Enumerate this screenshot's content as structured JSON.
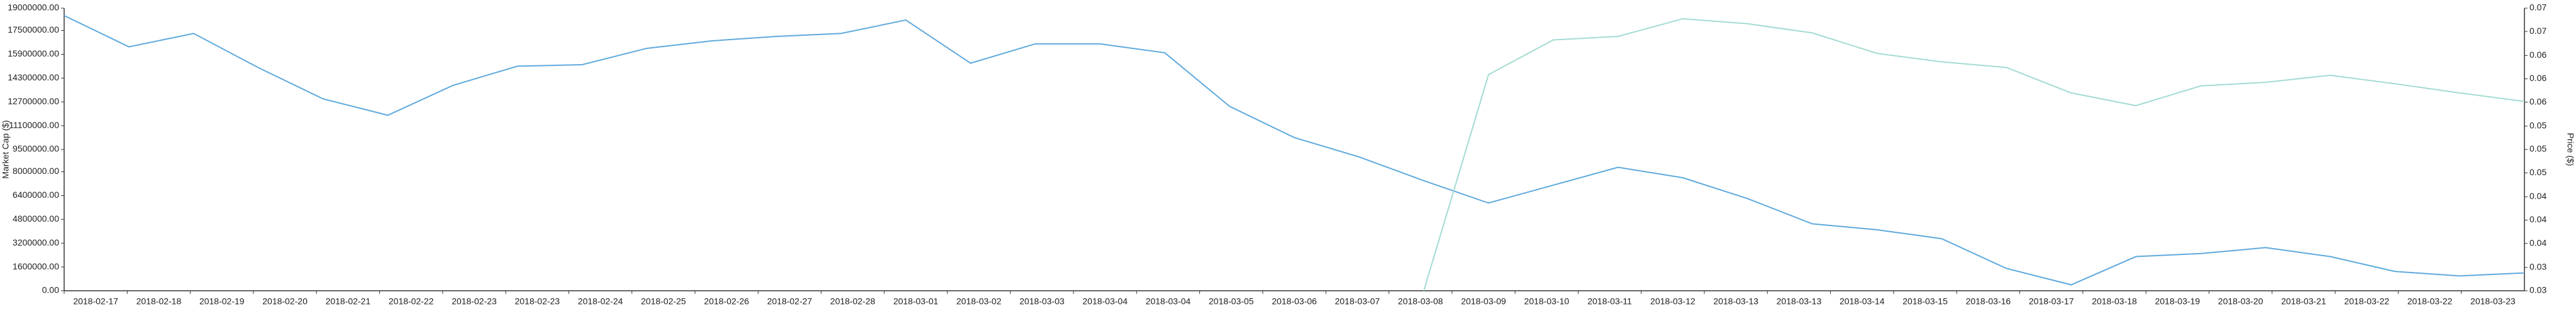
{
  "chart_data": {
    "type": "line",
    "y_label": "Market Cap ($)",
    "y2_label": "Price ($)",
    "categories": [
      "2018-02-17",
      "2018-02-18",
      "2018-02-19",
      "2018-02-20",
      "2018-02-21",
      "2018-02-22",
      "2018-02-23",
      "2018-02-23",
      "2018-02-24",
      "2018-02-25",
      "2018-02-26",
      "2018-02-27",
      "2018-02-28",
      "2018-03-01",
      "2018-03-02",
      "2018-03-03",
      "2018-03-04",
      "2018-03-04",
      "2018-03-05",
      "2018-03-06",
      "2018-03-07",
      "2018-03-08",
      "2018-03-09",
      "2018-03-10",
      "2018-03-11",
      "2018-03-12",
      "2018-03-13",
      "2018-03-13",
      "2018-03-14",
      "2018-03-15",
      "2018-03-16",
      "2018-03-17",
      "2018-03-18",
      "2018-03-19",
      "2018-03-20",
      "2018-03-21",
      "2018-03-22",
      "2018-03-22",
      "2018-03-23"
    ],
    "series": [
      {
        "name": "Market Cap",
        "color": "#5ea9dd",
        "axis": "y",
        "values": [
          18500000,
          16400000,
          17300000,
          15000000,
          12900000,
          11800000,
          13800000,
          15100000,
          15200000,
          16300000,
          16800000,
          17100000,
          17300000,
          18200000,
          15300000,
          16600000,
          16600000,
          16000000,
          12400000,
          10300000,
          9000000,
          7400000,
          5900000,
          7100000,
          8300000,
          7600000,
          6200000,
          4500000,
          4100000,
          3500000,
          1500000,
          400000,
          2300000,
          2500000,
          2900000,
          2300000,
          1300000,
          1000000,
          1200000
        ]
      },
      {
        "name": "Price",
        "color": "#a3dbd3",
        "axis": "y2",
        "values": [
          null,
          null,
          null,
          null,
          null,
          null,
          null,
          null,
          null,
          null,
          null,
          null,
          null,
          null,
          null,
          null,
          null,
          null,
          null,
          null,
          null,
          0.03,
          0.0606,
          0.0655,
          0.066,
          0.0685,
          0.0678,
          0.0665,
          0.0636,
          0.0624,
          0.0616,
          0.058,
          0.0562,
          0.059,
          0.0595,
          0.0605,
          0.0593,
          0.058,
          0.0568
        ]
      }
    ],
    "ylim": [
      0,
      19000000
    ],
    "yticks": [
      {
        "value": 0,
        "label": "0.00"
      },
      {
        "value": 1600000,
        "label": "1600000.00"
      },
      {
        "value": 3200000,
        "label": "3200000.00"
      },
      {
        "value": 4800000,
        "label": "4800000.00"
      },
      {
        "value": 6400000,
        "label": "6400000.00"
      },
      {
        "value": 8000000,
        "label": "8000000.00"
      },
      {
        "value": 9500000,
        "label": "9500000.00"
      },
      {
        "value": 11100000,
        "label": "11100000.00"
      },
      {
        "value": 12700000,
        "label": "12700000.00"
      },
      {
        "value": 14300000,
        "label": "14300000.00"
      },
      {
        "value": 15900000,
        "label": "15900000.00"
      },
      {
        "value": 17500000,
        "label": "17500000.00"
      },
      {
        "value": 19000000,
        "label": "19000000.00"
      }
    ],
    "y2lim": [
      0.03,
      0.07
    ],
    "y2ticks": [
      0.03,
      {
        "value": 0.0333,
        "label": "0.03"
      },
      {
        "value": 0.0367,
        "label": "0.04"
      },
      0.04,
      {
        "value": 0.0433,
        "label": "0.04"
      },
      {
        "value": 0.0467,
        "label": "0.05"
      },
      0.05,
      {
        "value": 0.0533,
        "label": "0.05"
      },
      {
        "value": 0.0567,
        "label": "0.06"
      },
      0.06,
      {
        "value": 0.0633,
        "label": "0.06"
      },
      {
        "value": 0.0667,
        "label": "0.07"
      },
      0.07
    ]
  }
}
